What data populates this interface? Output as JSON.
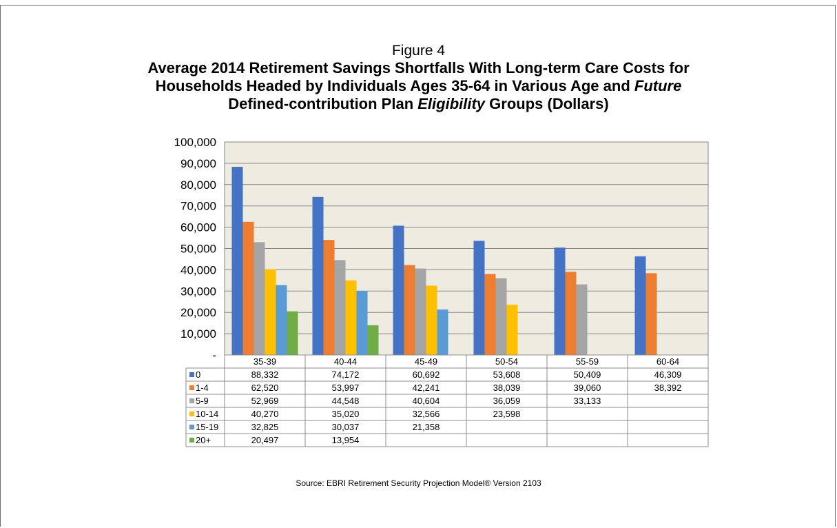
{
  "figure_label": "Figure 4",
  "title": {
    "line1": "Average 2014 Retirement Savings Shortfalls With Long-term Care Costs for",
    "line2_a": "Households Headed by Individuals Ages 35-64 in Various Age and ",
    "line2_b": "Future",
    "line3_b": "Defined-contribution Plan ",
    "line3_c": "Eligibility",
    "line3_d": " Groups (Dollars)"
  },
  "source": "Source: EBRI Retirement Security Projection Model® Version 2103",
  "colors": {
    "plot_bg": "#eeece1",
    "gridline": "#868686",
    "series": [
      "#4472c4",
      "#ed7d31",
      "#a5a5a5",
      "#ffc000",
      "#5b9bd5",
      "#70ad47"
    ]
  },
  "chart_data": {
    "type": "bar",
    "categories": [
      "35-39",
      "40-44",
      "45-49",
      "50-54",
      "55-59",
      "60-64"
    ],
    "y_ticks": [
      "-",
      "10,000",
      "20,000",
      "30,000",
      "40,000",
      "50,000",
      "60,000",
      "70,000",
      "80,000",
      "90,000",
      "100,000"
    ],
    "ylim": [
      0,
      100000
    ],
    "grid": true,
    "legend": "data-table",
    "series": [
      {
        "name": "0",
        "values": [
          88332,
          74172,
          60692,
          53608,
          50409,
          46309
        ],
        "labels": [
          "88,332",
          "74,172",
          "60,692",
          "53,608",
          "50,409",
          "46,309"
        ]
      },
      {
        "name": "1-4",
        "values": [
          62520,
          53997,
          42241,
          38039,
          39060,
          38392
        ],
        "labels": [
          "62,520",
          "53,997",
          "42,241",
          "38,039",
          "39,060",
          "38,392"
        ]
      },
      {
        "name": "5-9",
        "values": [
          52969,
          44548,
          40604,
          36059,
          33133,
          null
        ],
        "labels": [
          "52,969",
          "44,548",
          "40,604",
          "36,059",
          "33,133",
          ""
        ]
      },
      {
        "name": "10-14",
        "values": [
          40270,
          35020,
          32566,
          23598,
          null,
          null
        ],
        "labels": [
          "40,270",
          "35,020",
          "32,566",
          "23,598",
          "",
          ""
        ]
      },
      {
        "name": "15-19",
        "values": [
          32825,
          30037,
          21358,
          null,
          null,
          null
        ],
        "labels": [
          "32,825",
          "30,037",
          "21,358",
          "",
          "",
          ""
        ]
      },
      {
        "name": "20+",
        "values": [
          20497,
          13954,
          null,
          null,
          null,
          null
        ],
        "labels": [
          "20,497",
          "13,954",
          "",
          "",
          "",
          ""
        ]
      }
    ]
  }
}
